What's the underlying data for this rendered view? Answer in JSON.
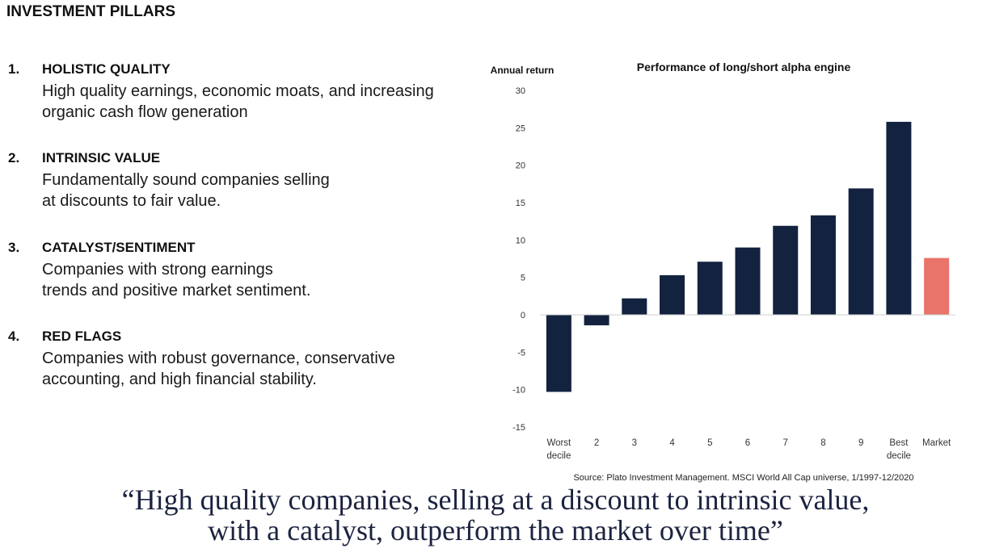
{
  "title": "INVESTMENT PILLARS",
  "pillars": [
    {
      "number": "1.",
      "heading": "HOLISTIC QUALITY",
      "line1": "High quality earnings, economic moats, and increasing",
      "line2": "organic cash flow generation"
    },
    {
      "number": "2.",
      "heading": "INTRINSIC VALUE",
      "line1": "Fundamentally sound companies selling",
      "line2": "at discounts to fair value."
    },
    {
      "number": "3.",
      "heading": "CATALYST/SENTIMENT",
      "line1": "Companies with strong earnings",
      "line2": "trends and positive market sentiment."
    },
    {
      "number": "4.",
      "heading": "RED FLAGS",
      "line1": "Companies with robust governance, conservative",
      "line2": "accounting, and high financial stability."
    }
  ],
  "chart_data": {
    "type": "bar",
    "title": "Performance of long/short alpha engine",
    "ylabel": "Annual return",
    "xlabel": "",
    "ylim": [
      -15,
      30
    ],
    "yticks": [
      30,
      25,
      20,
      15,
      10,
      5,
      0,
      -5,
      -10,
      -15
    ],
    "categories": [
      [
        "Worst",
        "decile"
      ],
      [
        "2"
      ],
      [
        "3"
      ],
      [
        "4"
      ],
      [
        "5"
      ],
      [
        "6"
      ],
      [
        "7"
      ],
      [
        "8"
      ],
      [
        "9"
      ],
      [
        "Best",
        "decile"
      ],
      [
        "Market"
      ]
    ],
    "values": [
      -10.3,
      -1.4,
      2.2,
      5.3,
      7.1,
      9.0,
      11.9,
      13.3,
      16.9,
      25.8,
      7.6
    ],
    "colors": [
      "#13223f",
      "#13223f",
      "#13223f",
      "#13223f",
      "#13223f",
      "#13223f",
      "#13223f",
      "#13223f",
      "#13223f",
      "#13223f",
      "#e8746a"
    ],
    "grid": false,
    "source": "Source: Plato Investment Management. MSCI World All Cap universe, 1/1997-12/2020"
  },
  "quote": {
    "line1": "“High quality companies, selling at a discount to intrinsic value,",
    "line2": "with a catalyst, outperform the market over time”"
  }
}
